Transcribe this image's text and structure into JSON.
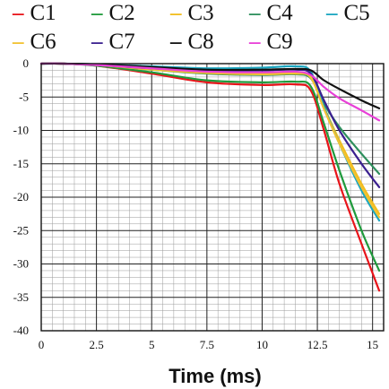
{
  "chart_data": {
    "type": "line",
    "title": "",
    "xlabel": "Time (ms)",
    "ylabel": "",
    "xlim": [
      0,
      15.5
    ],
    "ylim": [
      -40,
      0
    ],
    "x_ticks": [
      "0",
      "2.5",
      "5",
      "7.5",
      "10",
      "12.5",
      "15"
    ],
    "x_tick_values": [
      0,
      2.5,
      5,
      7.5,
      10,
      12.5,
      15
    ],
    "y_ticks": [
      "0",
      "-5",
      "-10",
      "-15",
      "-20",
      "-25",
      "-30",
      "-35",
      "-40"
    ],
    "y_tick_values": [
      0,
      -5,
      -10,
      -15,
      -20,
      -25,
      -30,
      -35,
      -40
    ],
    "grid": true,
    "legend_position": "top",
    "series": [
      {
        "name": "C1",
        "color": "#e8141a",
        "x": [
          0,
          1,
          2.5,
          5,
          7.5,
          10,
          11.5,
          12.2,
          12.8,
          13.5,
          14.5,
          15.3
        ],
        "y": [
          0,
          0,
          -0.3,
          -1.5,
          -2.8,
          -3.2,
          -3.1,
          -4.0,
          -10,
          -18,
          -27,
          -34
        ]
      },
      {
        "name": "C2",
        "color": "#1f9a3c",
        "x": [
          0,
          1,
          2.5,
          5,
          7.5,
          10,
          11.5,
          12.2,
          12.8,
          13.5,
          14.5,
          15.3
        ],
        "y": [
          0,
          0,
          -0.3,
          -1.3,
          -2.5,
          -2.8,
          -2.7,
          -3.4,
          -9,
          -16,
          -25,
          -31
        ]
      },
      {
        "name": "C3",
        "color": "#f2bd1d",
        "x": [
          0,
          1,
          2.5,
          5,
          7.5,
          10,
          11.5,
          12.2,
          12.8,
          13.5,
          14.5,
          15.3
        ],
        "y": [
          0,
          0,
          -0.2,
          -0.8,
          -1.3,
          -1.5,
          -1.4,
          -2.0,
          -6.5,
          -11.5,
          -18,
          -22.5
        ]
      },
      {
        "name": "C4",
        "color": "#2d8f5c",
        "x": [
          0,
          1,
          2.5,
          5,
          7.5,
          10,
          11.5,
          12.2,
          12.8,
          13.5,
          14.5,
          15.3
        ],
        "y": [
          0,
          0,
          -0.2,
          -0.9,
          -1.5,
          -1.7,
          -1.6,
          -2.2,
          -6,
          -9.5,
          -13.5,
          -16.5
        ]
      },
      {
        "name": "C5",
        "color": "#1ba6c0",
        "x": [
          0,
          1,
          2.5,
          5,
          7.5,
          10,
          11.5,
          12.2,
          12.8,
          13.5,
          14.5,
          15.3
        ],
        "y": [
          0,
          0,
          -0.1,
          -0.4,
          -0.7,
          -0.6,
          -0.4,
          -1.2,
          -6.5,
          -12,
          -19,
          -23.5
        ]
      },
      {
        "name": "C6",
        "color": "#f2c232",
        "x": [
          0,
          1,
          2.5,
          5,
          7.5,
          10,
          11.5,
          12.2,
          12.8,
          13.5,
          14.5,
          15.3
        ],
        "y": [
          0,
          0,
          -0.2,
          -0.9,
          -1.4,
          -1.6,
          -1.5,
          -2.1,
          -6.8,
          -12,
          -18.5,
          -23
        ]
      },
      {
        "name": "C7",
        "color": "#3a1f8f",
        "x": [
          0,
          1,
          2.5,
          5,
          7.5,
          10,
          11.5,
          12.2,
          12.8,
          13.5,
          14.5,
          15.3
        ],
        "y": [
          0,
          0,
          -0.2,
          -0.7,
          -1.0,
          -1.0,
          -0.9,
          -1.5,
          -5.5,
          -10,
          -15,
          -18.5
        ]
      },
      {
        "name": "C8",
        "color": "#111111",
        "x": [
          0,
          1,
          2.5,
          5,
          7.5,
          10,
          11.5,
          12.2,
          12.8,
          13.5,
          14.5,
          15.3
        ],
        "y": [
          0,
          0,
          -0.1,
          -0.5,
          -0.9,
          -0.9,
          -0.8,
          -1.0,
          -2.5,
          -3.8,
          -5.5,
          -6.7
        ]
      },
      {
        "name": "C9",
        "color": "#e83fd7",
        "x": [
          0,
          1,
          2.5,
          5,
          7.5,
          10,
          11.5,
          12.2,
          12.8,
          13.5,
          14.5,
          15.3
        ],
        "y": [
          0,
          0,
          -0.2,
          -0.7,
          -1.2,
          -1.3,
          -1.2,
          -1.7,
          -3.5,
          -5.2,
          -7.0,
          -8.5
        ]
      }
    ]
  }
}
